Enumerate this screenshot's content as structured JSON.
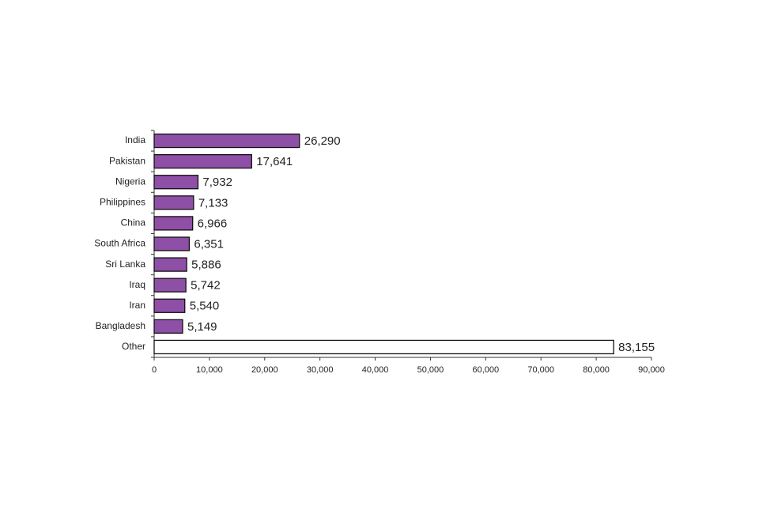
{
  "chart_data": {
    "type": "hbar",
    "categories": [
      "India",
      "Pakistan",
      "Nigeria",
      "Philippines",
      "China",
      "South Africa",
      "Sri Lanka",
      "Iraq",
      "Iran",
      "Bangladesh",
      "Other"
    ],
    "values": [
      26290,
      17641,
      7932,
      7133,
      6966,
      6351,
      5886,
      5742,
      5540,
      5149,
      83155
    ],
    "value_labels": [
      "26,290",
      "17,641",
      "7,932",
      "7,133",
      "6,966",
      "6,351",
      "5,886",
      "5,742",
      "5,540",
      "5,149",
      "83,155"
    ],
    "colors": [
      "#8e4fa6",
      "#8e4fa6",
      "#8e4fa6",
      "#8e4fa6",
      "#8e4fa6",
      "#8e4fa6",
      "#8e4fa6",
      "#8e4fa6",
      "#8e4fa6",
      "#8e4fa6",
      "#ffffff"
    ],
    "xlim": [
      0,
      90000
    ],
    "xticks": [
      0,
      {
        "value": 10000,
        "label": "10,000"
      },
      {
        "value": 20000,
        "label": "20,000"
      },
      {
        "value": 30000,
        "label": "30,000"
      },
      {
        "value": 40000,
        "label": "40,000"
      },
      {
        "value": 50000,
        "label": "50,000"
      },
      {
        "value": 60000,
        "label": "60,000"
      },
      {
        "value": 70000,
        "label": "70,000"
      },
      {
        "value": 80000,
        "label": "80,000"
      },
      {
        "value": 90000,
        "label": "90,000"
      }
    ],
    "grid": false
  }
}
